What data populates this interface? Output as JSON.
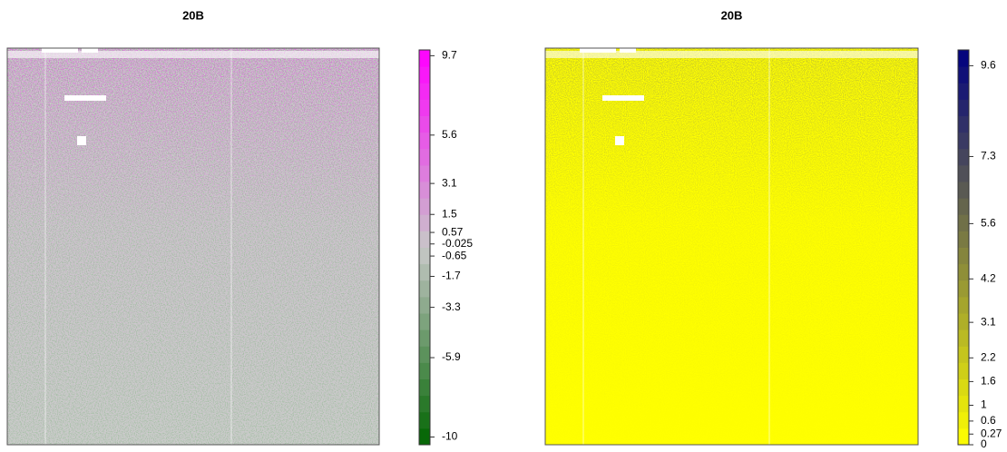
{
  "chart_data": [
    {
      "type": "image",
      "title": "20B",
      "zlim": [
        -10.4,
        10
      ],
      "zticks": [
        9.7,
        5.6,
        3.1,
        1.5,
        0.57,
        -0.025,
        -0.65,
        -1.7,
        -3.3,
        -5.9,
        -10
      ],
      "colors": [
        "#006400",
        "#c8c8c8",
        "#ff00ff"
      ],
      "fill": "#cbcbcb"
    },
    {
      "type": "image",
      "title": "20B",
      "zlim": [
        0,
        10
      ],
      "zticks": [
        9.6,
        7.3,
        5.6,
        4.2,
        3.1,
        2.2,
        1.6,
        1,
        0.6,
        0.27,
        0
      ],
      "colors": [
        "#ffff00",
        "#000080"
      ],
      "fill": "#ffff00"
    }
  ]
}
